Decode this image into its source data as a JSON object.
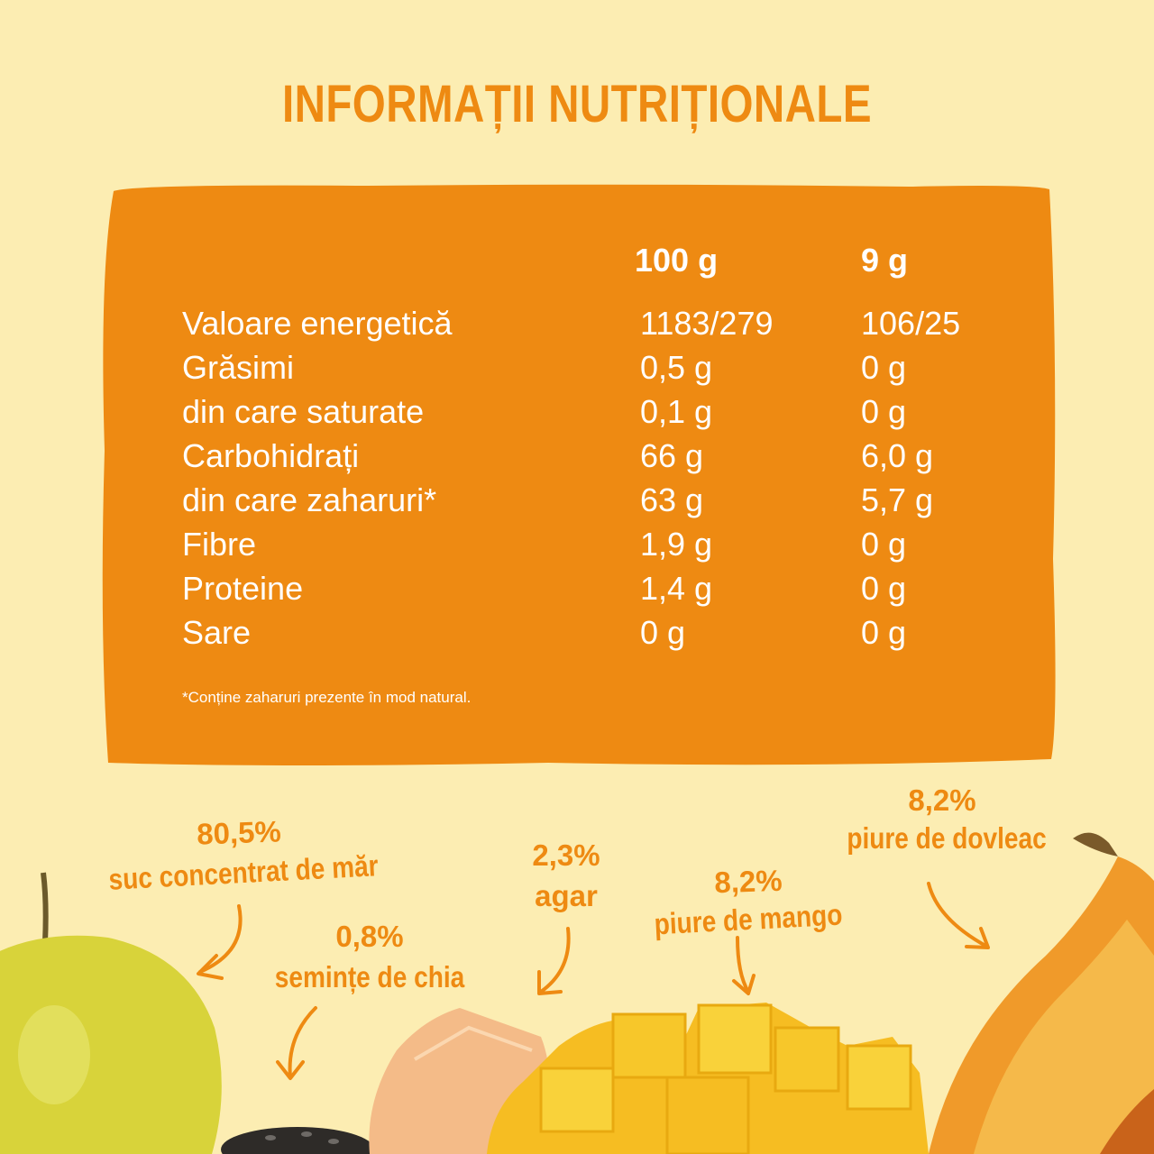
{
  "title": "INFORMAȚII NUTRIȚIONALE",
  "table": {
    "col_headers": [
      "100 g",
      "9 g"
    ],
    "rows": [
      {
        "label": "Valoare energetică",
        "per100": "1183/279",
        "per9": "106/25"
      },
      {
        "label": "Grăsimi",
        "per100": "0,5 g",
        "per9": "0 g"
      },
      {
        "label": "din care saturate",
        "per100": "0,1 g",
        "per9": "0 g"
      },
      {
        "label": "Carbohidrați",
        "per100": "66 g",
        "per9": "6,0 g"
      },
      {
        "label": "din care zaharuri*",
        "per100": "63 g",
        "per9": "5,7 g"
      },
      {
        "label": "Fibre",
        "per100": "1,9 g",
        "per9": "0 g"
      },
      {
        "label": "Proteine",
        "per100": "1,4 g",
        "per9": "0 g"
      },
      {
        "label": "Sare",
        "per100": "0 g",
        "per9": "0 g"
      }
    ],
    "footnote": "*Conține zaharuri prezente în mod natural."
  },
  "ingredients": {
    "apple": {
      "percent": "80,5%",
      "name": "suc concentrat de măr"
    },
    "chia": {
      "percent": "0,8%",
      "name": "semințe de chia"
    },
    "agar": {
      "percent": "2,3%",
      "name": "agar"
    },
    "mango": {
      "percent": "8,2%",
      "name": "piure de mango"
    },
    "pumpkin": {
      "percent": "8,2%",
      "name": "piure de dovleac"
    }
  },
  "colors": {
    "background": "#fcedb2",
    "panel": "#ee8a12",
    "accent_text": "#ee8a12",
    "panel_text": "#ffffff"
  }
}
